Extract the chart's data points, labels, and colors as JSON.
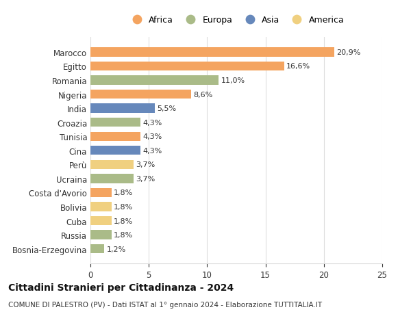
{
  "categories": [
    "Marocco",
    "Egitto",
    "Romania",
    "Nigeria",
    "India",
    "Croazia",
    "Tunisia",
    "Cina",
    "Perù",
    "Ucraina",
    "Costa d'Avorio",
    "Bolivia",
    "Cuba",
    "Russia",
    "Bosnia-Erzegovina"
  ],
  "values": [
    20.9,
    16.6,
    11.0,
    8.6,
    5.5,
    4.3,
    4.3,
    4.3,
    3.7,
    3.7,
    1.8,
    1.8,
    1.8,
    1.8,
    1.2
  ],
  "labels": [
    "20,9%",
    "16,6%",
    "11,0%",
    "8,6%",
    "5,5%",
    "4,3%",
    "4,3%",
    "4,3%",
    "3,7%",
    "3,7%",
    "1,8%",
    "1,8%",
    "1,8%",
    "1,8%",
    "1,2%"
  ],
  "continents": [
    "Africa",
    "Africa",
    "Europa",
    "Africa",
    "Asia",
    "Europa",
    "Africa",
    "Asia",
    "America",
    "Europa",
    "Africa",
    "America",
    "America",
    "Europa",
    "Europa"
  ],
  "continent_colors": {
    "Africa": "#F4A460",
    "Europa": "#AABB88",
    "Asia": "#6688BB",
    "America": "#F0D080"
  },
  "legend_order": [
    "Africa",
    "Europa",
    "Asia",
    "America"
  ],
  "title": "Cittadini Stranieri per Cittadinanza - 2024",
  "subtitle": "COMUNE DI PALESTRO (PV) - Dati ISTAT al 1° gennaio 2024 - Elaborazione TUTTITALIA.IT",
  "xlim": [
    0,
    25
  ],
  "xticks": [
    0,
    5,
    10,
    15,
    20,
    25
  ],
  "background_color": "#ffffff",
  "grid_color": "#dddddd",
  "bar_height": 0.65
}
